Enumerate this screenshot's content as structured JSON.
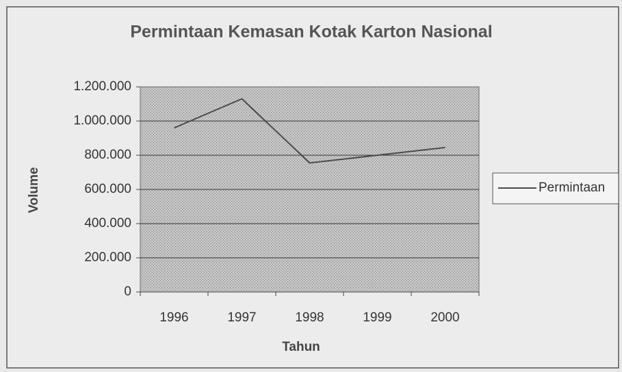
{
  "chart_data": {
    "type": "line",
    "title": "Permintaan Kemasan Kotak Karton Nasional",
    "x_label": "Tahun",
    "y_label": "Volume",
    "categories": [
      "1996",
      "1997",
      "1998",
      "1999",
      "2000"
    ],
    "series": [
      {
        "name": "Permintaan",
        "color": "#4a4a4a",
        "values": [
          960000,
          1130000,
          755000,
          800000,
          845000
        ]
      }
    ],
    "ylim": [
      0,
      1200000
    ],
    "yticks": [
      0,
      {
        "value": 200000,
        "label": "200.000"
      },
      {
        "value": 400000,
        "label": "400.000"
      },
      {
        "value": 600000,
        "label": "600.000"
      },
      {
        "value": 800000,
        "label": "800.000"
      },
      {
        "value": 1000000,
        "label": "1.000.000"
      },
      {
        "value": 1200000,
        "label": "1.200.000"
      }
    ],
    "grid": true,
    "legend": "right"
  }
}
